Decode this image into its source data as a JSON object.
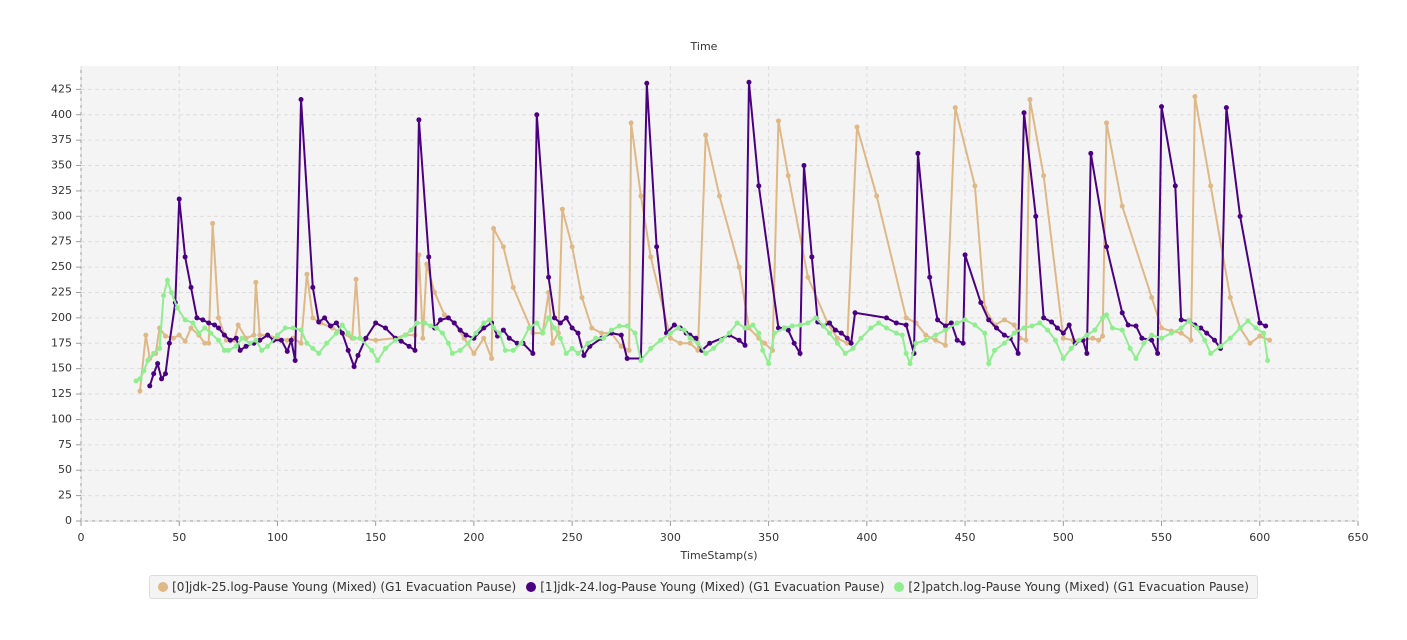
{
  "chart_data": {
    "type": "line",
    "title": "Time",
    "x_label": "TimeStamp(s)",
    "xlim": [
      0,
      650
    ],
    "xticks": [
      0,
      50,
      100,
      150,
      200,
      250,
      300,
      350,
      400,
      450,
      500,
      550,
      600,
      650
    ],
    "ylim": [
      0,
      448
    ],
    "yticks": [
      0,
      25,
      50,
      75,
      100,
      125,
      150,
      175,
      200,
      225,
      250,
      275,
      300,
      325,
      350,
      375,
      400,
      425
    ],
    "grid": true,
    "legend": "bottom",
    "series": [
      {
        "name": "[0]jdk-25.log-Pause Young (Mixed) (G1 Evacuation Pause)",
        "color": "#deb887",
        "x": [
          30,
          33,
          35,
          38,
          40,
          43,
          47,
          50,
          53,
          56,
          60,
          63,
          65,
          67,
          70,
          74,
          78,
          80,
          84,
          88,
          89,
          91,
          95,
          100,
          105,
          108,
          112,
          115,
          118,
          122,
          128,
          133,
          138,
          140,
          142,
          150,
          160,
          165,
          170,
          172,
          174,
          176,
          180,
          185,
          190,
          195,
          200,
          205,
          209,
          210,
          215,
          220,
          230,
          235,
          238,
          240,
          243,
          245,
          250,
          255,
          260,
          265,
          270,
          275,
          279,
          280,
          285,
          290,
          300,
          305,
          310,
          314,
          318,
          325,
          335,
          340,
          345,
          348,
          352,
          355,
          360,
          370,
          380,
          385,
          390,
          395,
          405,
          420,
          425,
          430,
          435,
          440,
          445,
          455,
          460,
          465,
          470,
          475,
          478,
          481,
          483,
          490,
          500,
          505,
          510,
          515,
          518,
          520,
          522,
          530,
          545,
          550,
          555,
          560,
          565,
          567,
          575,
          585,
          590,
          595,
          600,
          605
        ],
        "values": [
          128,
          183,
          160,
          165,
          190,
          182,
          180,
          183,
          177,
          190,
          183,
          175,
          175,
          293,
          200,
          178,
          178,
          193,
          180,
          183,
          235,
          183,
          183,
          180,
          178,
          180,
          175,
          243,
          200,
          195,
          190,
          185,
          180,
          238,
          180,
          178,
          180,
          183,
          183,
          262,
          180,
          253,
          225,
          203,
          195,
          180,
          165,
          180,
          160,
          288,
          270,
          230,
          185,
          185,
          225,
          175,
          185,
          307,
          270,
          220,
          190,
          185,
          185,
          172,
          168,
          392,
          320,
          260,
          180,
          175,
          175,
          168,
          380,
          320,
          250,
          190,
          180,
          175,
          168,
          394,
          340,
          240,
          195,
          180,
          175,
          388,
          320,
          200,
          195,
          183,
          178,
          173,
          407,
          330,
          210,
          193,
          198,
          193,
          180,
          178,
          415,
          340,
          180,
          178,
          178,
          180,
          178,
          182,
          392,
          310,
          220,
          190,
          187,
          185,
          178,
          418,
          330,
          220,
          190,
          175,
          182,
          178
        ]
      },
      {
        "name": "[1]jdk-24.log-Pause Young (Mixed) (G1 Evacuation Pause)",
        "color": "#4b0082",
        "x": [
          35,
          37,
          39,
          41,
          43,
          45,
          48,
          50,
          53,
          56,
          59,
          62,
          65,
          68,
          70,
          73,
          76,
          79,
          81,
          84,
          88,
          91,
          95,
          98,
          102,
          105,
          107,
          109,
          112,
          118,
          121,
          124,
          127,
          130,
          133,
          136,
          139,
          141,
          145,
          150,
          155,
          160,
          163,
          167,
          170,
          172,
          177,
          180,
          183,
          187,
          190,
          193,
          196,
          200,
          205,
          209,
          212,
          215,
          218,
          222,
          225,
          230,
          232,
          238,
          241,
          244,
          247,
          250,
          253,
          256,
          259,
          265,
          270,
          275,
          278,
          285,
          288,
          293,
          298,
          302,
          305,
          308,
          310,
          313,
          316,
          320,
          330,
          335,
          338,
          340,
          345,
          355,
          358,
          360,
          363,
          366,
          368,
          372,
          375,
          378,
          381,
          384,
          387,
          390,
          392,
          394,
          410,
          415,
          420,
          424,
          426,
          432,
          436,
          440,
          443,
          446,
          449,
          450,
          458,
          462,
          466,
          470,
          473,
          477,
          480,
          486,
          490,
          494,
          497,
          500,
          503,
          506,
          510,
          512,
          514,
          522,
          530,
          533,
          537,
          540,
          545,
          548,
          550,
          557,
          560,
          564,
          567,
          570,
          573,
          577,
          580,
          583,
          590,
          600,
          603
        ],
        "values": [
          133,
          145,
          155,
          140,
          145,
          175,
          215,
          317,
          260,
          230,
          200,
          198,
          195,
          193,
          190,
          183,
          178,
          180,
          168,
          172,
          175,
          178,
          183,
          178,
          178,
          167,
          178,
          158,
          415,
          230,
          196,
          200,
          192,
          195,
          185,
          168,
          152,
          163,
          180,
          195,
          190,
          180,
          177,
          172,
          168,
          395,
          260,
          190,
          198,
          200,
          195,
          188,
          183,
          180,
          190,
          195,
          182,
          188,
          180,
          175,
          175,
          165,
          400,
          240,
          200,
          195,
          200,
          190,
          185,
          163,
          172,
          180,
          185,
          183,
          160,
          160,
          431,
          270,
          185,
          193,
          190,
          185,
          183,
          180,
          168,
          175,
          183,
          178,
          173,
          432,
          330,
          190,
          190,
          188,
          175,
          165,
          350,
          260,
          196,
          192,
          195,
          188,
          185,
          180,
          175,
          205,
          200,
          195,
          193,
          165,
          362,
          240,
          198,
          192,
          195,
          178,
          175,
          262,
          215,
          198,
          190,
          183,
          180,
          165,
          402,
          300,
          200,
          196,
          190,
          185,
          193,
          175,
          178,
          165,
          362,
          270,
          205,
          193,
          192,
          180,
          178,
          165,
          408,
          330,
          198,
          197,
          193,
          190,
          185,
          178,
          170,
          407,
          300,
          195,
          192
        ]
      },
      {
        "name": "[2]patch.log-Pause Young (Mixed) (G1 Evacuation Pause)",
        "color": "#90ee90",
        "x": [
          28,
          30,
          32,
          34,
          37,
          40,
          42,
          44,
          46,
          49,
          53,
          57,
          60,
          63,
          66,
          70,
          73,
          75,
          79,
          82,
          86,
          89,
          92,
          95,
          100,
          104,
          108,
          112,
          115,
          118,
          121,
          125,
          130,
          133,
          136,
          139,
          142,
          148,
          151,
          155,
          160,
          165,
          168,
          171,
          175,
          178,
          181,
          184,
          187,
          189,
          193,
          197,
          201,
          205,
          208,
          210,
          213,
          216,
          220,
          224,
          228,
          232,
          235,
          238,
          241,
          244,
          247,
          250,
          253,
          258,
          262,
          266,
          270,
          274,
          278,
          282,
          285,
          290,
          295,
          300,
          304,
          307,
          310,
          314,
          318,
          322,
          326,
          330,
          334,
          338,
          342,
          345,
          347,
          350,
          353,
          358,
          362,
          366,
          370,
          374,
          378,
          381,
          385,
          389,
          393,
          397,
          402,
          406,
          410,
          415,
          418,
          420,
          422,
          425,
          430,
          435,
          440,
          446,
          450,
          455,
          460,
          462,
          465,
          470,
          475,
          480,
          484,
          488,
          492,
          496,
          500,
          504,
          508,
          512,
          516,
          520,
          522,
          525,
          530,
          534,
          537,
          541,
          545,
          550,
          555,
          560,
          564,
          568,
          572,
          575,
          580,
          585,
          590,
          594,
          598,
          602,
          604
        ],
        "values": [
          138,
          140,
          148,
          158,
          165,
          170,
          222,
          237,
          225,
          210,
          198,
          195,
          185,
          190,
          185,
          178,
          168,
          168,
          172,
          180,
          175,
          178,
          168,
          172,
          183,
          190,
          190,
          188,
          175,
          170,
          165,
          175,
          185,
          193,
          185,
          180,
          180,
          168,
          158,
          170,
          178,
          183,
          188,
          195,
          195,
          192,
          190,
          185,
          175,
          165,
          168,
          175,
          185,
          195,
          198,
          190,
          185,
          168,
          168,
          175,
          190,
          195,
          185,
          200,
          190,
          180,
          165,
          170,
          165,
          175,
          180,
          180,
          188,
          192,
          192,
          185,
          158,
          170,
          178,
          185,
          190,
          188,
          180,
          175,
          165,
          170,
          178,
          185,
          195,
          190,
          193,
          185,
          168,
          155,
          185,
          190,
          192,
          193,
          195,
          200,
          192,
          185,
          175,
          165,
          170,
          180,
          190,
          195,
          190,
          185,
          183,
          165,
          155,
          175,
          178,
          183,
          188,
          195,
          198,
          193,
          185,
          155,
          168,
          175,
          185,
          190,
          192,
          195,
          188,
          178,
          160,
          170,
          178,
          183,
          188,
          200,
          203,
          190,
          188,
          170,
          160,
          175,
          183,
          180,
          185,
          190,
          197,
          190,
          178,
          165,
          172,
          180,
          190,
          197,
          190,
          185,
          158
        ]
      }
    ]
  }
}
